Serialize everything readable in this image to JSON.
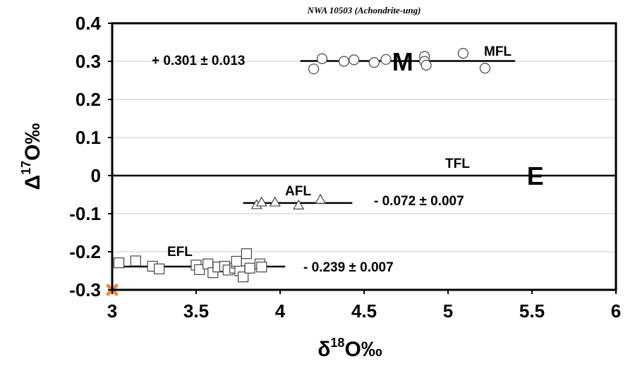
{
  "chart_data": {
    "type": "scatter",
    "title": "NWA 10503 (Achondrite-ung)",
    "xlabel": {
      "base": "δ",
      "sup": "18",
      "rest": "O‰"
    },
    "ylabel": {
      "base": "Δ",
      "sup": "17",
      "rest": "O‰"
    },
    "xlim": [
      3,
      6
    ],
    "ylim": [
      -0.3,
      0.4
    ],
    "xticks": [
      3,
      3.5,
      4,
      4.5,
      5,
      5.5,
      6
    ],
    "xtick_labels": [
      "3",
      "3.5",
      "4",
      "4.5",
      "5",
      "5.5",
      "6"
    ],
    "yticks": [
      -0.3,
      -0.2,
      -0.1,
      0,
      0.1,
      0.2,
      0.3,
      0.4
    ],
    "ytick_labels": [
      "-0.3",
      "-0.2",
      "-0.1",
      "0",
      "0.1",
      "0.2",
      "0.3",
      "0.4"
    ],
    "grid": "horizontal",
    "lines": [
      {
        "name": "MFL",
        "y": 0.301,
        "x": [
          4.12,
          5.4
        ],
        "label": "MFL",
        "annotation": "+ 0.301 ± 0.013"
      },
      {
        "name": "TFL",
        "y": 0,
        "x": [
          3,
          6
        ],
        "label": "TFL"
      },
      {
        "name": "AFL",
        "y": -0.072,
        "x": [
          3.78,
          4.43
        ],
        "label": "AFL",
        "annotation": "- 0.072 ± 0.007"
      },
      {
        "name": "EFL",
        "y": -0.239,
        "x": [
          3.02,
          4.03
        ],
        "label": "EFL",
        "annotation": "- 0.239 ± 0.007"
      }
    ],
    "region_labels": [
      {
        "text": "M",
        "x": 4.73,
        "y": 0.3
      },
      {
        "text": "E",
        "x": 5.52,
        "y": 0
      }
    ],
    "series": [
      {
        "marker": "circle",
        "points": [
          [
            4.2,
            0.28
          ],
          [
            4.25,
            0.307
          ],
          [
            4.38,
            0.3
          ],
          [
            4.44,
            0.304
          ],
          [
            4.56,
            0.297
          ],
          [
            4.63,
            0.305
          ],
          [
            4.86,
            0.313
          ],
          [
            4.86,
            0.3
          ],
          [
            4.87,
            0.29
          ],
          [
            5.09,
            0.321
          ],
          [
            5.22,
            0.282
          ]
        ]
      },
      {
        "marker": "triangle",
        "points": [
          [
            3.86,
            -0.077
          ],
          [
            3.89,
            -0.07
          ],
          [
            3.97,
            -0.07
          ],
          [
            4.11,
            -0.078
          ],
          [
            4.24,
            -0.063
          ]
        ]
      },
      {
        "marker": "square",
        "points": [
          [
            3.04,
            -0.229
          ],
          [
            3.14,
            -0.224
          ],
          [
            3.24,
            -0.238
          ],
          [
            3.28,
            -0.245
          ],
          [
            3.5,
            -0.235
          ],
          [
            3.52,
            -0.247
          ],
          [
            3.57,
            -0.232
          ],
          [
            3.6,
            -0.255
          ],
          [
            3.63,
            -0.24
          ],
          [
            3.67,
            -0.238
          ],
          [
            3.69,
            -0.248
          ],
          [
            3.73,
            -0.243
          ],
          [
            3.74,
            -0.23
          ],
          [
            3.76,
            -0.25
          ],
          [
            3.78,
            -0.266
          ],
          [
            3.8,
            -0.205
          ],
          [
            3.82,
            -0.243
          ],
          [
            3.88,
            -0.232
          ],
          [
            3.89,
            -0.24
          ],
          [
            3.74,
            -0.225
          ]
        ]
      },
      {
        "marker": "cross",
        "color": "#f08a3c",
        "points": [
          [
            3,
            -0.3
          ]
        ]
      }
    ]
  }
}
